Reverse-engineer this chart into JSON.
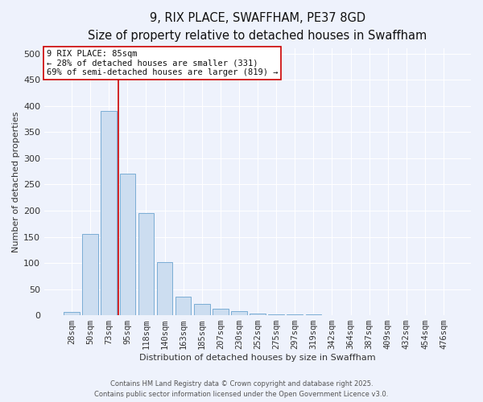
{
  "title": "9, RIX PLACE, SWAFFHAM, PE37 8GD",
  "subtitle": "Size of property relative to detached houses in Swaffham",
  "xlabel": "Distribution of detached houses by size in Swaffham",
  "ylabel": "Number of detached properties",
  "bar_labels": [
    "28sqm",
    "50sqm",
    "73sqm",
    "95sqm",
    "118sqm",
    "140sqm",
    "163sqm",
    "185sqm",
    "207sqm",
    "230sqm",
    "252sqm",
    "275sqm",
    "297sqm",
    "319sqm",
    "342sqm",
    "364sqm",
    "387sqm",
    "409sqm",
    "432sqm",
    "454sqm",
    "476sqm"
  ],
  "bar_values": [
    6,
    155,
    390,
    270,
    195,
    101,
    35,
    21,
    12,
    8,
    3,
    2,
    1,
    1,
    0,
    0,
    0,
    0,
    0,
    0,
    0
  ],
  "bar_color": "#ccddf0",
  "bar_edge_color": "#7aadd4",
  "vline_x_idx": 2.5,
  "vline_color": "#cc0000",
  "ylim": [
    0,
    510
  ],
  "yticks": [
    0,
    50,
    100,
    150,
    200,
    250,
    300,
    350,
    400,
    450,
    500
  ],
  "annotation_title": "9 RIX PLACE: 85sqm",
  "annotation_line1": "← 28% of detached houses are smaller (331)",
  "annotation_line2": "69% of semi-detached houses are larger (819) →",
  "footer_line1": "Contains HM Land Registry data © Crown copyright and database right 2025.",
  "footer_line2": "Contains public sector information licensed under the Open Government Licence v3.0.",
  "bg_color": "#eef2fc",
  "grid_color": "#ffffff",
  "title_fontsize": 10.5,
  "subtitle_fontsize": 8.5,
  "axis_label_fontsize": 8,
  "tick_fontsize": 7.5,
  "footer_fontsize": 6.0
}
